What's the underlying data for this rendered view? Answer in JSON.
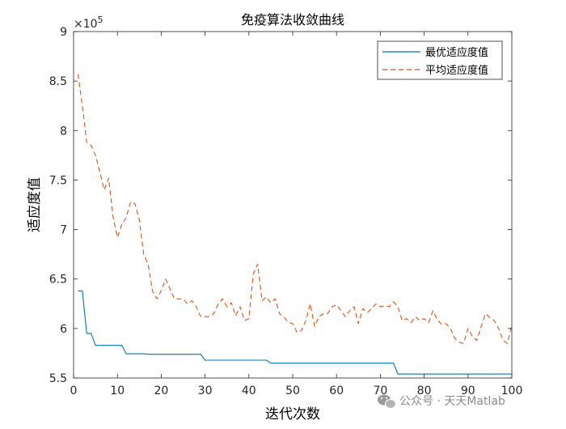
{
  "chart_data": {
    "type": "line",
    "title": "免疫算法收敛曲线",
    "xlabel": "迭代次数",
    "ylabel": "适应度值",
    "multiplier_label": "×10",
    "multiplier_exponent": "5",
    "xlim": [
      0,
      100
    ],
    "ylim": [
      550000,
      900000
    ],
    "xticks": [
      0,
      10,
      20,
      30,
      40,
      50,
      60,
      70,
      80,
      90,
      100
    ],
    "yticks": [
      550000,
      600000,
      650000,
      700000,
      750000,
      800000,
      850000,
      900000
    ],
    "ytick_labels": [
      "5.5",
      "6",
      "6.5",
      "7",
      "7.5",
      "8",
      "8.5",
      "9"
    ],
    "grid": false,
    "legend_position": "top-right",
    "series": [
      {
        "name": "最优适应度值",
        "color": "#0072BD",
        "style": "solid",
        "x": [
          1,
          2,
          3,
          4,
          5,
          6,
          7,
          8,
          9,
          10,
          11,
          12,
          13,
          14,
          15,
          16,
          17,
          18,
          19,
          20,
          21,
          22,
          23,
          24,
          25,
          26,
          27,
          28,
          29,
          30,
          31,
          32,
          33,
          34,
          35,
          36,
          37,
          38,
          39,
          40,
          41,
          42,
          43,
          44,
          45,
          46,
          47,
          48,
          49,
          50,
          51,
          52,
          53,
          54,
          55,
          56,
          57,
          58,
          59,
          60,
          61,
          62,
          63,
          64,
          65,
          66,
          67,
          68,
          69,
          70,
          71,
          72,
          73,
          74,
          75,
          76,
          77,
          78,
          79,
          80,
          81,
          82,
          83,
          84,
          85,
          86,
          87,
          88,
          89,
          90,
          91,
          92,
          93,
          94,
          95,
          96,
          97,
          98,
          99,
          100
        ],
        "y": [
          638000,
          638000,
          595000,
          595000,
          583000,
          583000,
          583000,
          583000,
          583000,
          583000,
          583000,
          574500,
          574500,
          574500,
          574500,
          574500,
          574000,
          574000,
          574000,
          574000,
          574000,
          574000,
          574000,
          574000,
          574000,
          574000,
          574000,
          574000,
          574000,
          568000,
          568000,
          568000,
          568000,
          568000,
          568000,
          568000,
          568000,
          568000,
          568000,
          568000,
          568000,
          568000,
          568000,
          568000,
          565000,
          565000,
          565000,
          565000,
          565000,
          565000,
          565000,
          565000,
          565000,
          565000,
          565000,
          565000,
          565000,
          565000,
          565000,
          565000,
          565000,
          565000,
          565000,
          565000,
          565000,
          565000,
          565000,
          565000,
          565000,
          565000,
          565000,
          565000,
          565000,
          554000,
          554000,
          554000,
          554000,
          554000,
          554000,
          554000,
          554000,
          554000,
          554000,
          554000,
          554000,
          554000,
          554000,
          554000,
          554000,
          554000,
          554000,
          554000,
          554000,
          554000,
          554000,
          554000,
          554000,
          554000,
          554000,
          554000
        ]
      },
      {
        "name": "平均适应度值",
        "color": "#D95319",
        "style": "dashed",
        "x": [
          1,
          2,
          3,
          4,
          5,
          6,
          7,
          8,
          9,
          10,
          11,
          12,
          13,
          14,
          15,
          16,
          17,
          18,
          19,
          20,
          21,
          22,
          23,
          24,
          25,
          26,
          27,
          28,
          29,
          30,
          31,
          32,
          33,
          34,
          35,
          36,
          37,
          38,
          39,
          40,
          41,
          42,
          43,
          44,
          45,
          46,
          47,
          48,
          49,
          50,
          51,
          52,
          53,
          54,
          55,
          56,
          57,
          58,
          59,
          60,
          61,
          62,
          63,
          64,
          65,
          66,
          67,
          68,
          69,
          70,
          71,
          72,
          73,
          74,
          75,
          76,
          77,
          78,
          79,
          80,
          81,
          82,
          83,
          84,
          85,
          86,
          87,
          88,
          89,
          90,
          91,
          92,
          93,
          94,
          95,
          96,
          97,
          98,
          99,
          100
        ],
        "y": [
          857000,
          825000,
          788000,
          785000,
          775000,
          758000,
          740000,
          752000,
          713000,
          692000,
          705000,
          712000,
          728000,
          726000,
          710000,
          675000,
          665000,
          638000,
          630000,
          638000,
          650000,
          640000,
          630000,
          630000,
          630000,
          625000,
          628000,
          622000,
          612000,
          612000,
          612000,
          615000,
          625000,
          630000,
          622000,
          626000,
          613000,
          622000,
          608000,
          610000,
          655000,
          665000,
          628000,
          632000,
          626000,
          630000,
          615000,
          612000,
          606000,
          605000,
          596000,
          598000,
          608000,
          625000,
          602000,
          612000,
          615000,
          615000,
          622000,
          624000,
          618000,
          612000,
          618000,
          622000,
          605000,
          620000,
          616000,
          620000,
          625000,
          622000,
          623000,
          622000,
          627000,
          622000,
          608000,
          610000,
          606000,
          612000,
          608000,
          610000,
          606000,
          618000,
          609000,
          604000,
          605000,
          600000,
          590000,
          586000,
          585000,
          600000,
          592000,
          588000,
          602000,
          615000,
          611000,
          608000,
          600000,
          588000,
          585000,
          604000
        ]
      }
    ]
  },
  "watermark": {
    "icon": "wechat-icon",
    "text": "公众号 · 天天Matlab"
  }
}
